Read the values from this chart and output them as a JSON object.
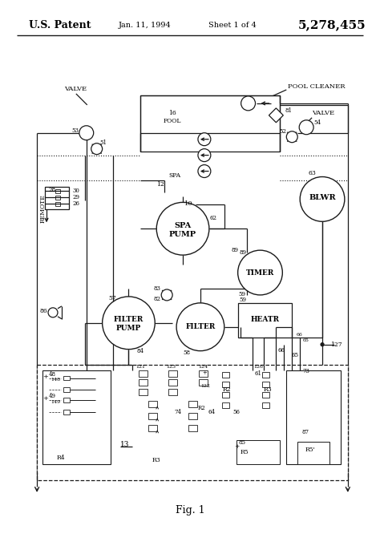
{
  "title_left": "U.S. Patent",
  "title_center": "Jan. 11, 1994",
  "title_center2": "Sheet 1 of 4",
  "title_right": "5,278,455",
  "fig_label": "Fig. 1",
  "bg_color": "#ffffff",
  "line_color": "#1a1a1a"
}
